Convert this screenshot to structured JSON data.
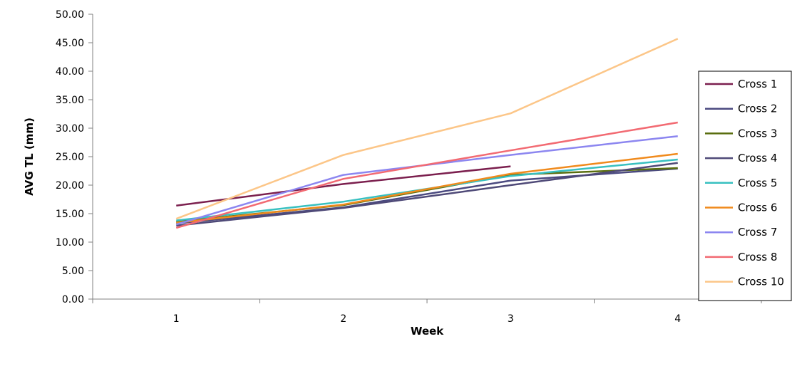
{
  "chart_data": {
    "type": "line",
    "title": "",
    "xlabel": "Week",
    "ylabel": "AVG TL (mm)",
    "categories": [
      "1",
      "2",
      "3",
      "4"
    ],
    "ylim": [
      0,
      50
    ],
    "yticks": [
      "0.00",
      "5.00",
      "10.00",
      "15.00",
      "20.00",
      "25.00",
      "30.00",
      "35.00",
      "40.00",
      "45.00",
      "50.00"
    ],
    "grid": false,
    "legend_position": "right",
    "series": [
      {
        "name": "Cross 1",
        "color": "#7b1f4e",
        "values": [
          16.4,
          20.2,
          23.3,
          null
        ]
      },
      {
        "name": "Cross 2",
        "color": "#4b4a80",
        "values": [
          13.3,
          16.1,
          20.8,
          22.9
        ]
      },
      {
        "name": "Cross 3",
        "color": "#5a6e0f",
        "values": [
          13.6,
          16.5,
          21.8,
          23.0
        ]
      },
      {
        "name": "Cross 4",
        "color": "#4f4a78",
        "values": [
          12.9,
          16.0,
          20.0,
          23.9
        ]
      },
      {
        "name": "Cross 5",
        "color": "#38c0c0",
        "values": [
          13.8,
          17.1,
          21.6,
          24.5
        ]
      },
      {
        "name": "Cross 6",
        "color": "#f08a1c",
        "values": [
          13.4,
          16.6,
          22.0,
          25.5
        ]
      },
      {
        "name": "Cross 7",
        "color": "#8c86f0",
        "values": [
          13.1,
          21.8,
          25.3,
          28.6
        ]
      },
      {
        "name": "Cross 8",
        "color": "#f26a72",
        "values": [
          12.5,
          21.1,
          26.1,
          31.0
        ]
      },
      {
        "name": "Cross 10",
        "color": "#fcc688",
        "values": [
          14.1,
          25.3,
          32.6,
          45.7
        ]
      }
    ]
  }
}
